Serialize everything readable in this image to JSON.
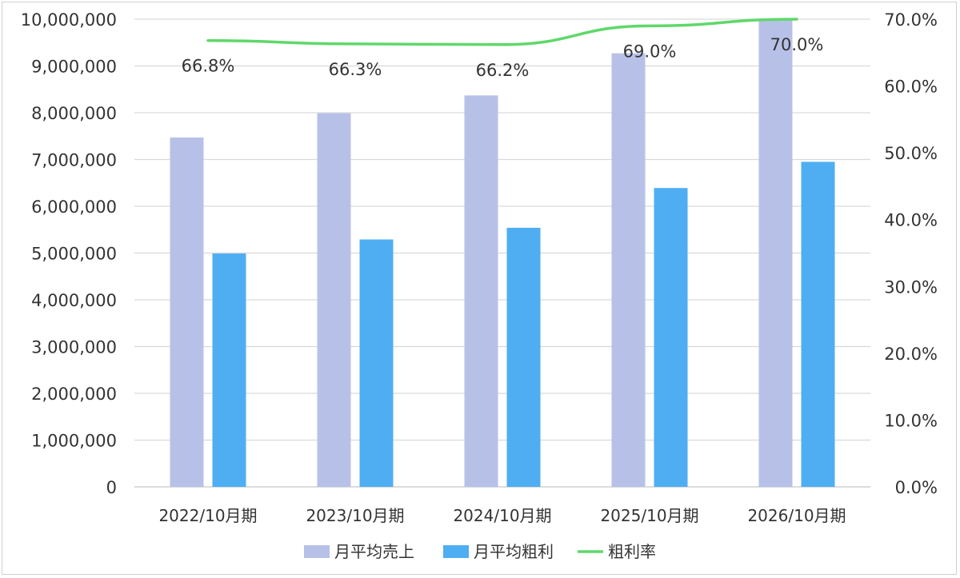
{
  "chart_data": {
    "type": "bar",
    "categories": [
      "2022/10月期",
      "2023/10月期",
      "2024/10月期",
      "2025/10月期",
      "2026/10月期"
    ],
    "series": [
      {
        "name": "月平均売上",
        "type": "bar",
        "axis": "left",
        "color": "#b7c1e8",
        "values": [
          7470000,
          7990000,
          8370000,
          9270000,
          10000000
        ]
      },
      {
        "name": "月平均粗利",
        "type": "bar",
        "axis": "left",
        "color": "#4faef2",
        "values": [
          4990000,
          5290000,
          5540000,
          6390000,
          6950000
        ]
      },
      {
        "name": "粗利率",
        "type": "line",
        "axis": "right",
        "color": "#5fd86a",
        "values": [
          66.8,
          66.3,
          66.2,
          69.0,
          70.0
        ],
        "data_labels": [
          "66.8%",
          "66.3%",
          "66.2%",
          "69.0%",
          "70.0%"
        ]
      }
    ],
    "y_left": {
      "ylim": [
        0,
        10000000
      ],
      "ticks": [
        0,
        1000000,
        2000000,
        3000000,
        4000000,
        5000000,
        6000000,
        7000000,
        8000000,
        9000000,
        10000000
      ],
      "tick_labels": [
        "0",
        "1,000,000",
        "2,000,000",
        "3,000,000",
        "4,000,000",
        "5,000,000",
        "6,000,000",
        "7,000,000",
        "8,000,000",
        "9,000,000",
        "10,000,000"
      ]
    },
    "y_right": {
      "ylim": [
        0,
        70
      ],
      "ticks": [
        0,
        10,
        20,
        30,
        40,
        50,
        60,
        70
      ],
      "tick_labels": [
        "0.0%",
        "10.0%",
        "20.0%",
        "30.0%",
        "40.0%",
        "50.0%",
        "60.0%",
        "70.0%"
      ]
    },
    "grid": true,
    "legend": "bottom"
  }
}
